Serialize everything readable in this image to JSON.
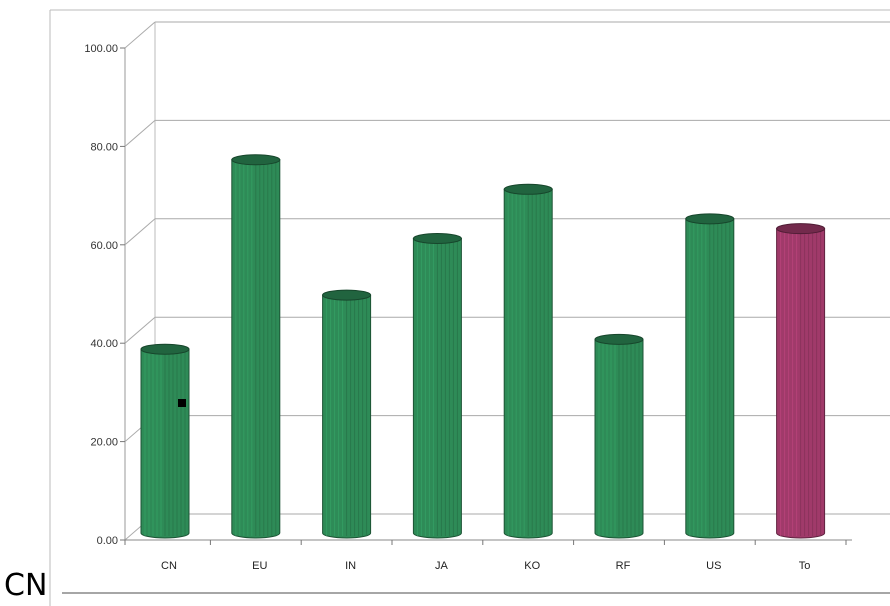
{
  "chart_data": {
    "type": "bar",
    "categories": [
      "CN",
      "EU",
      "IN",
      "JA",
      "KO",
      "RF",
      "US",
      "To"
    ],
    "values": [
      40,
      78.5,
      51,
      62.5,
      72.5,
      42,
      66.5,
      64.5
    ],
    "ylim": [
      0,
      100
    ],
    "yticks": [
      "0.00",
      "20.00",
      "40.00",
      "60.00",
      "80.00",
      "100.00"
    ],
    "grid": true,
    "style": "3d-cylinder",
    "colors": {
      "default": "#2e8b57",
      "highlight": "#a03a6a"
    },
    "highlight_category": "To"
  },
  "caption": "CN"
}
